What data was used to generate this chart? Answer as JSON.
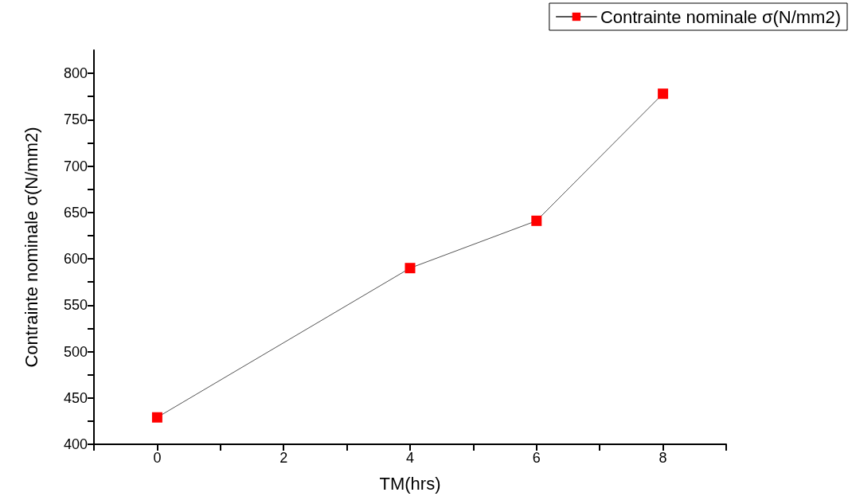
{
  "chart_data": {
    "type": "line",
    "xlabel": "TM(hrs)",
    "ylabel": "Contrainte nominale σ(N/mm2)",
    "x": [
      0,
      4,
      6,
      8
    ],
    "series": [
      {
        "name": "Contrainte nominale σ(N/mm2)",
        "color": "#ff0000",
        "values": [
          429,
          590,
          641,
          778
        ]
      }
    ],
    "xlim": [
      -1,
      9
    ],
    "xticks": [
      {
        "value": -1,
        "label": null
      },
      0,
      {
        "value": 1,
        "label": null
      },
      2,
      {
        "value": 3,
        "label": null
      },
      4,
      {
        "value": 5,
        "label": null
      },
      6,
      {
        "value": 7,
        "label": null
      },
      8,
      {
        "value": 9,
        "label": null
      }
    ],
    "ylim": [
      400,
      825
    ],
    "yticks": [
      400,
      {
        "value": 425,
        "label": null
      },
      450,
      {
        "value": 475,
        "label": null
      },
      500,
      {
        "value": 525,
        "label": null
      },
      550,
      {
        "value": 575,
        "label": null
      },
      600,
      {
        "value": 625,
        "label": null
      },
      650,
      {
        "value": 675,
        "label": null
      },
      700,
      {
        "value": 725,
        "label": null
      },
      750,
      {
        "value": 775,
        "label": null
      },
      800
    ],
    "grid": false,
    "legend": "top right",
    "marker": "square",
    "line_style": "solid"
  }
}
